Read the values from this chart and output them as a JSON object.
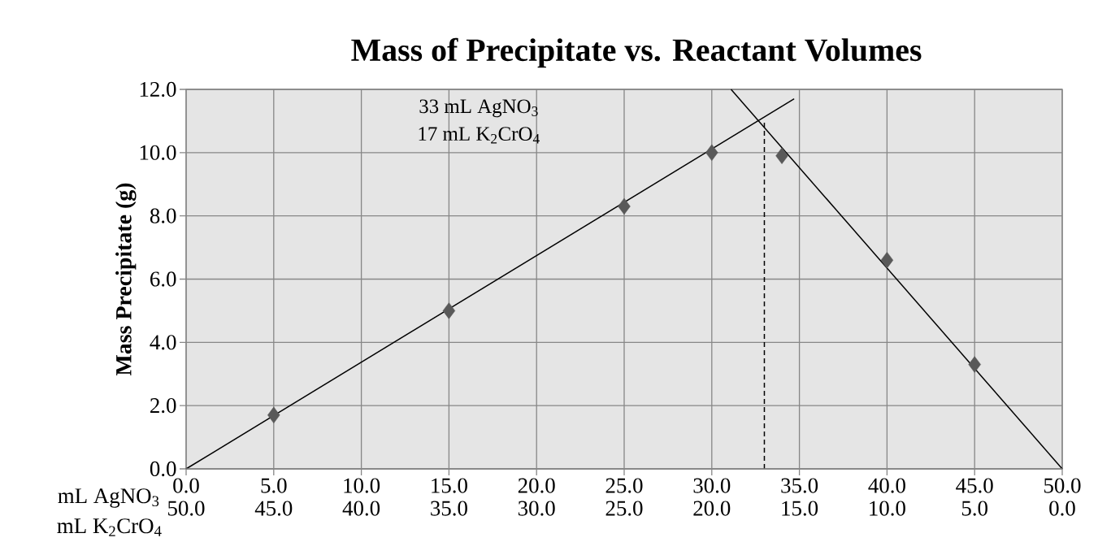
{
  "chart_data": {
    "type": "scatter",
    "title": "Mass of Precipitate vs. Reactant Volumes",
    "ylabel": "Mass Precipitate (g)",
    "xlabel": "mL AgNO$_{3}$",
    "x2label": "mL K$_{2}$CrO$_{4}$",
    "xlim": [
      0,
      50
    ],
    "ylim": [
      0,
      12
    ],
    "x2lim": [
      50,
      0
    ],
    "xticks": [
      {
        "value": 0,
        "label": "0.0"
      },
      {
        "value": 5,
        "label": "5.0"
      },
      {
        "value": 10,
        "label": "10.0"
      },
      {
        "value": 15,
        "label": "15.0"
      },
      {
        "value": 20,
        "label": "20.0"
      },
      {
        "value": 25,
        "label": "25.0"
      },
      {
        "value": 30,
        "label": "30.0"
      },
      {
        "value": 35,
        "label": "35.0"
      },
      {
        "value": 40,
        "label": "40.0"
      },
      {
        "value": 45,
        "label": "45.0"
      },
      {
        "value": 50,
        "label": "50.0"
      }
    ],
    "x2ticks": [
      {
        "value": 50,
        "label": "50.0"
      },
      {
        "value": 45,
        "label": "45.0"
      },
      {
        "value": 40,
        "label": "40.0"
      },
      {
        "value": 35,
        "label": "35.0"
      },
      {
        "value": 30,
        "label": "30.0"
      },
      {
        "value": 25,
        "label": "25.0"
      },
      {
        "value": 20,
        "label": "20.0"
      },
      {
        "value": 15,
        "label": "15.0"
      },
      {
        "value": 10,
        "label": "10.0"
      },
      {
        "value": 5,
        "label": "5.0"
      },
      {
        "value": 0,
        "label": "0.0"
      }
    ],
    "yticks": [
      {
        "value": 0,
        "label": "0.0"
      },
      {
        "value": 2,
        "label": "2.0"
      },
      {
        "value": 4,
        "label": "4.0"
      },
      {
        "value": 6,
        "label": "6.0"
      },
      {
        "value": 8,
        "label": "8.0"
      },
      {
        "value": 10,
        "label": "10.0"
      },
      {
        "value": 12,
        "label": "12.0"
      }
    ],
    "grid": true,
    "series": [
      {
        "color": "#595959",
        "marker": "diamond",
        "x": [
          5,
          15,
          25,
          30,
          34,
          40,
          45
        ],
        "values": [
          1.7,
          5.0,
          8.3,
          10.0,
          9.9,
          6.6,
          3.3
        ]
      },
      {
        "type": "line",
        "color": "#000000",
        "line_style": "solid",
        "x": [
          0,
          34.7
        ],
        "values": [
          0,
          11.7
        ]
      },
      {
        "type": "line",
        "color": "#000000",
        "line_style": "solid",
        "x": [
          31.1,
          50
        ],
        "values": [
          12.0,
          0
        ]
      },
      {
        "type": "line",
        "color": "#000000",
        "line_style": "dashed",
        "x": [
          33,
          33
        ],
        "values": [
          0,
          11.0
        ]
      }
    ],
    "annotations": [
      "33 mL AgNO$_{3}$",
      "17 mL K$_{2}$CrO$_{4}$"
    ]
  }
}
